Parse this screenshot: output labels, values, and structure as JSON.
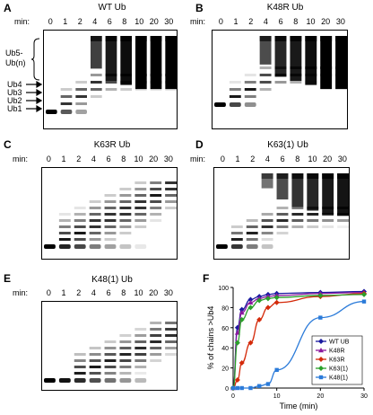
{
  "time_points": [
    "0",
    "1",
    "2",
    "4",
    "6",
    "8",
    "10",
    "20",
    "30"
  ],
  "min_label": "min:",
  "panels": {
    "A": {
      "letter": "A",
      "title": "WT Ub"
    },
    "B": {
      "letter": "B",
      "title": "K48R Ub"
    },
    "C": {
      "letter": "C",
      "title": "K63R Ub"
    },
    "D": {
      "letter": "D",
      "title": "K63(1) Ub"
    },
    "E": {
      "letter": "E",
      "title": "K48(1) Ub"
    },
    "F": {
      "letter": "F"
    }
  },
  "ub_labels": {
    "chains": "Ub5-\nUb(n)",
    "chains_line1": "Ub5-",
    "chains_line2": "Ub(n)",
    "ub4": "Ub4",
    "ub3": "Ub3",
    "ub2": "Ub2",
    "ub1": "Ub1"
  },
  "chart_data": {
    "type": "line",
    "xlabel": "Time (min)",
    "ylabel": "% of chains >Ub4",
    "xlim": [
      0,
      30
    ],
    "ylim": [
      0,
      100
    ],
    "xticks": [
      0,
      10,
      20,
      30
    ],
    "yticks": [
      0,
      20,
      40,
      60,
      80,
      100
    ],
    "legend_position": "bottom-right",
    "series": [
      {
        "name": "WT UB",
        "color": "#1a1aa0",
        "marker": "diamond",
        "x": [
          0,
          1,
          2,
          4,
          6,
          8,
          10,
          20,
          30
        ],
        "y": [
          0,
          60,
          78,
          88,
          91,
          93,
          94,
          95,
          96
        ]
      },
      {
        "name": "K48R",
        "color": "#8b1a9e",
        "marker": "triangle",
        "x": [
          0,
          1,
          2,
          4,
          6,
          8,
          10,
          20,
          30
        ],
        "y": [
          0,
          55,
          75,
          85,
          89,
          91,
          92,
          94,
          95
        ]
      },
      {
        "name": "K63R",
        "color": "#d42a0a",
        "marker": "diamond",
        "x": [
          0,
          1,
          2,
          4,
          6,
          8,
          10,
          20,
          30
        ],
        "y": [
          0,
          8,
          25,
          45,
          68,
          80,
          85,
          91,
          94
        ]
      },
      {
        "name": "K63(1)",
        "color": "#2aa02a",
        "marker": "diamond",
        "x": [
          0,
          1,
          2,
          4,
          6,
          8,
          10,
          20,
          30
        ],
        "y": [
          0,
          45,
          68,
          80,
          87,
          89,
          90,
          92,
          93
        ]
      },
      {
        "name": "K48(1)",
        "color": "#2b7bd9",
        "marker": "square",
        "x": [
          0,
          1,
          2,
          4,
          6,
          8,
          10,
          20,
          30
        ],
        "y": [
          0,
          0,
          0,
          0,
          2,
          4,
          18,
          70,
          86
        ]
      }
    ]
  }
}
